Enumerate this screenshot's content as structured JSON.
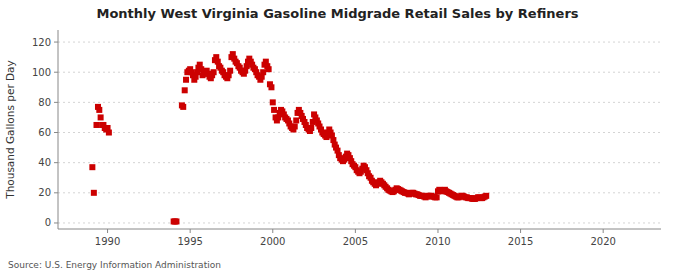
{
  "chart_data": {
    "type": "scatter",
    "title": "Monthly West Virginia Gasoline Midgrade Retail Sales by Refiners",
    "y_label": "Thousand Gallons per Day",
    "source": "Source: U.S. Energy Information Administration",
    "color": "#cc0000",
    "marker": "square",
    "grid": "y",
    "xlim": [
      1987.0,
      2023.5
    ],
    "ylim": [
      -4,
      128
    ],
    "xticks": [
      1990,
      1995,
      2000,
      2005,
      2010,
      2015,
      2020
    ],
    "yticks": [
      0,
      20,
      40,
      60,
      80,
      100,
      120
    ],
    "x": [
      1989.08,
      1989.17,
      1989.33,
      1989.42,
      1989.5,
      1989.58,
      1989.67,
      1989.75,
      1989.83,
      1989.92,
      1990.0,
      1990.08,
      1994.0,
      1994.08,
      1994.17,
      1994.5,
      1994.58,
      1994.67,
      1994.75,
      1994.83,
      1994.92,
      1995.0,
      1995.08,
      1995.17,
      1995.25,
      1995.33,
      1995.42,
      1995.5,
      1995.58,
      1995.67,
      1995.75,
      1995.83,
      1995.92,
      1996.0,
      1996.08,
      1996.17,
      1996.25,
      1996.33,
      1996.42,
      1996.5,
      1996.58,
      1996.67,
      1996.75,
      1996.83,
      1996.92,
      1997.0,
      1997.08,
      1997.17,
      1997.25,
      1997.33,
      1997.42,
      1997.5,
      1997.58,
      1997.67,
      1997.75,
      1997.83,
      1997.92,
      1998.0,
      1998.08,
      1998.17,
      1998.25,
      1998.33,
      1998.42,
      1998.5,
      1998.58,
      1998.67,
      1998.75,
      1998.83,
      1998.92,
      1999.0,
      1999.08,
      1999.17,
      1999.25,
      1999.33,
      1999.42,
      1999.5,
      1999.58,
      1999.67,
      1999.75,
      1999.83,
      1999.92,
      2000.0,
      2000.08,
      2000.17,
      2000.25,
      2000.33,
      2000.42,
      2000.5,
      2000.58,
      2000.67,
      2000.75,
      2000.83,
      2000.92,
      2001.0,
      2001.08,
      2001.17,
      2001.25,
      2001.33,
      2001.42,
      2001.5,
      2001.58,
      2001.67,
      2001.75,
      2001.83,
      2001.92,
      2002.0,
      2002.08,
      2002.17,
      2002.25,
      2002.33,
      2002.42,
      2002.5,
      2002.58,
      2002.67,
      2002.75,
      2002.83,
      2002.92,
      2003.0,
      2003.08,
      2003.17,
      2003.25,
      2003.33,
      2003.42,
      2003.5,
      2003.58,
      2003.67,
      2003.75,
      2003.83,
      2003.92,
      2004.0,
      2004.08,
      2004.17,
      2004.25,
      2004.33,
      2004.42,
      2004.5,
      2004.58,
      2004.67,
      2004.75,
      2004.83,
      2004.92,
      2005.0,
      2005.08,
      2005.17,
      2005.25,
      2005.33,
      2005.42,
      2005.5,
      2005.58,
      2005.67,
      2005.75,
      2005.83,
      2005.92,
      2006.0,
      2006.08,
      2006.17,
      2006.25,
      2006.33,
      2006.42,
      2006.5,
      2006.58,
      2006.67,
      2006.75,
      2006.83,
      2006.92,
      2007.0,
      2007.08,
      2007.17,
      2007.25,
      2007.33,
      2007.42,
      2007.5,
      2007.58,
      2007.67,
      2007.75,
      2007.83,
      2007.92,
      2008.0,
      2008.08,
      2008.17,
      2008.25,
      2008.33,
      2008.42,
      2008.5,
      2008.58,
      2008.67,
      2008.75,
      2008.83,
      2008.92,
      2009.0,
      2009.08,
      2009.17,
      2009.25,
      2009.33,
      2009.42,
      2009.5,
      2009.58,
      2009.67,
      2009.75,
      2009.83,
      2009.92,
      2010.0,
      2010.08,
      2010.17,
      2010.25,
      2010.33,
      2010.42,
      2010.5,
      2010.58,
      2010.67,
      2010.75,
      2010.83,
      2010.92,
      2011.0,
      2011.08,
      2011.17,
      2011.25,
      2011.33,
      2011.42,
      2011.5,
      2011.58,
      2011.67,
      2011.75,
      2011.83,
      2011.92,
      2012.0,
      2012.08,
      2012.17,
      2012.25,
      2012.33,
      2012.42,
      2012.5,
      2012.58,
      2012.67,
      2012.75,
      2012.83,
      2012.92
    ],
    "values": [
      37.0,
      20.0,
      65.0,
      77.0,
      75.0,
      70.0,
      65.0,
      65.0,
      63.0,
      62.0,
      63.0,
      60.0,
      1.0,
      1.0,
      1.0,
      78.0,
      77.0,
      88.0,
      95.0,
      100.0,
      101.0,
      102.0,
      100.0,
      98.0,
      95.0,
      97.0,
      100.0,
      103.0,
      105.0,
      102.0,
      98.0,
      100.0,
      99.0,
      101.0,
      99.0,
      97.0,
      96.0,
      98.0,
      100.0,
      108.0,
      110.0,
      107.0,
      104.0,
      103.0,
      101.0,
      100.0,
      98.0,
      97.0,
      96.0,
      98.0,
      101.0,
      110.0,
      112.0,
      109.0,
      107.0,
      106.0,
      104.0,
      103.0,
      101.0,
      100.0,
      99.0,
      101.0,
      104.0,
      107.0,
      109.0,
      107.0,
      105.0,
      103.0,
      102.0,
      100.0,
      98.0,
      97.0,
      95.0,
      97.0,
      100.0,
      105.0,
      107.0,
      104.0,
      102.0,
      92.0,
      90.0,
      80.0,
      75.0,
      70.0,
      68.0,
      70.0,
      73.0,
      75.0,
      74.0,
      72.0,
      70.0,
      69.0,
      68.0,
      66.0,
      64.0,
      63.0,
      62.0,
      64.0,
      68.0,
      73.0,
      75.0,
      73.0,
      71.0,
      69.0,
      67.0,
      65.0,
      63.0,
      62.0,
      61.0,
      63.0,
      67.0,
      72.0,
      70.0,
      68.0,
      66.0,
      64.0,
      62.0,
      60.0,
      59.0,
      58.0,
      57.0,
      60.0,
      62.0,
      60.0,
      58.0,
      55.0,
      52.0,
      50.0,
      48.0,
      45.0,
      43.0,
      42.0,
      41.0,
      42.0,
      44.0,
      46.0,
      45.0,
      43.0,
      41.0,
      39.0,
      38.0,
      37.0,
      35.0,
      34.0,
      33.0,
      34.0,
      36.0,
      38.0,
      37.0,
      35.0,
      33.0,
      31.0,
      30.0,
      28.0,
      27.0,
      26.0,
      25.0,
      26.0,
      27.0,
      28.0,
      27.0,
      26.0,
      25.0,
      24.0,
      23.0,
      22.0,
      21.5,
      21.0,
      20.5,
      21.0,
      22.0,
      23.0,
      22.5,
      22.0,
      21.5,
      21.0,
      20.5,
      20.0,
      20.0,
      19.5,
      19.0,
      19.5,
      20.0,
      20.0,
      19.5,
      19.0,
      19.0,
      18.5,
      18.0,
      18.0,
      18.0,
      17.5,
      17.0,
      17.5,
      18.0,
      18.0,
      18.0,
      17.5,
      17.5,
      17.0,
      17.0,
      21.0,
      22.0,
      21.5,
      21.0,
      21.5,
      22.0,
      21.0,
      20.5,
      20.0,
      19.5,
      19.0,
      18.5,
      18.0,
      17.5,
      17.0,
      17.0,
      17.5,
      18.0,
      18.0,
      17.5,
      17.0,
      17.0,
      16.5,
      16.5,
      16.5,
      16.0,
      16.0,
      16.0,
      16.5,
      17.0,
      17.0,
      16.5,
      16.5,
      17.0,
      17.5,
      18.0
    ]
  }
}
